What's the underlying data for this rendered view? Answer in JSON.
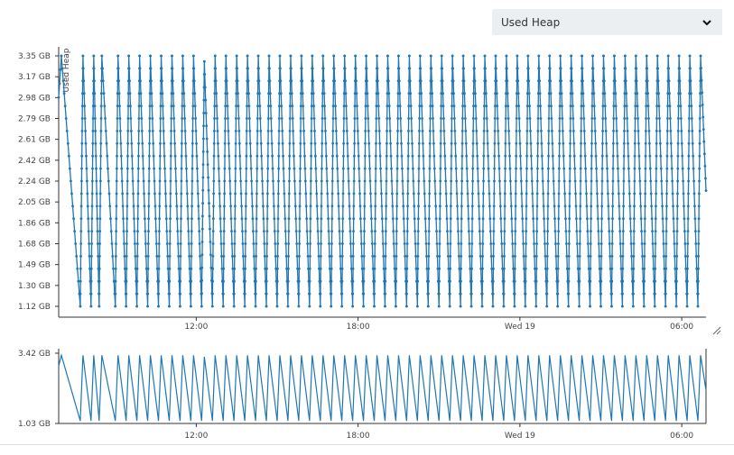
{
  "dropdown": {
    "selected": "Used Heap"
  },
  "icons": {
    "dropdown": "chevron-down-icon",
    "resize": "resize-handle-icon"
  },
  "colors": {
    "series": "#1f77b4",
    "axis": "#333333",
    "dropdown_bg": "#eceff1"
  },
  "chart_data": [
    {
      "type": "line",
      "title": "",
      "ylabel": "Used Heap",
      "xlabel": "",
      "markers": true,
      "y_ticks": [
        "1.12 GB",
        "1.30 GB",
        "1.49 GB",
        "1.68 GB",
        "1.86 GB",
        "2.05 GB",
        "2.24 GB",
        "2.42 GB",
        "2.61 GB",
        "2.79 GB",
        "2.98 GB",
        "3.17 GB",
        "3.35 GB"
      ],
      "x_ticks": [
        "12:00",
        "18:00",
        "Wed 19",
        "06:00"
      ],
      "ylim_gb": [
        1.03,
        3.42
      ],
      "x_range_hours_from_noon": [
        -5.1,
        18.9
      ],
      "series": [
        {
          "values_description": "sawtooth pattern of used heap rising from about 1.1 GB to about 3.4 GB then dropping",
          "x": [
            -5.1,
            -5.0,
            -4.3,
            -4.2,
            -3.9,
            -3.8,
            -3.6,
            -3.5,
            -3.0,
            -2.9,
            -2.6,
            -2.5,
            -2.2,
            -2.1,
            -1.8,
            -1.7,
            -1.4,
            -1.3,
            -1.0,
            -0.9,
            -0.6,
            -0.5,
            -0.2,
            -0.1,
            0.2,
            0.3,
            0.6,
            0.7,
            1.0,
            1.1,
            1.4,
            1.5,
            1.8,
            1.9,
            2.2,
            2.3,
            2.6,
            2.7,
            3.0,
            3.1,
            3.4,
            3.5,
            3.8,
            3.9,
            4.2,
            4.3,
            4.6,
            4.7,
            5.0,
            5.1,
            5.4,
            5.5,
            5.8,
            5.9,
            6.2,
            6.3,
            6.6,
            6.7,
            7.0,
            7.1,
            7.4,
            7.5,
            7.8,
            7.9,
            8.2,
            8.3,
            8.6,
            8.7,
            9.0,
            9.1,
            9.4,
            9.5,
            9.8,
            9.9,
            10.2,
            10.3,
            10.6,
            10.7,
            11.0,
            11.1,
            11.4,
            11.5,
            11.8,
            11.9,
            12.2,
            12.3,
            12.6,
            12.7,
            13.0,
            13.1,
            13.4,
            13.5,
            13.8,
            13.9,
            14.2,
            14.3,
            14.6,
            14.7,
            15.0,
            15.1,
            15.4,
            15.5,
            15.8,
            15.9,
            16.2,
            16.3,
            16.6,
            16.7,
            17.0,
            17.1,
            17.4,
            17.5,
            17.8,
            17.9,
            18.2,
            18.3,
            18.6,
            18.7,
            18.9
          ],
          "y": [
            2.98,
            3.35,
            1.12,
            3.35,
            1.12,
            3.35,
            1.12,
            3.35,
            1.12,
            3.35,
            1.12,
            3.35,
            1.12,
            3.35,
            1.12,
            3.35,
            1.12,
            3.35,
            1.12,
            3.35,
            1.12,
            3.35,
            1.12,
            3.35,
            1.12,
            3.3,
            1.12,
            3.35,
            1.12,
            3.35,
            1.12,
            3.35,
            1.12,
            3.35,
            1.12,
            3.35,
            1.12,
            3.35,
            1.12,
            3.35,
            1.12,
            3.35,
            1.12,
            3.35,
            1.12,
            3.35,
            1.12,
            3.35,
            1.12,
            3.35,
            1.12,
            3.35,
            1.12,
            3.35,
            1.12,
            3.35,
            1.12,
            3.35,
            1.12,
            3.35,
            1.12,
            3.35,
            1.12,
            3.35,
            1.12,
            3.35,
            1.12,
            3.35,
            1.12,
            3.35,
            1.12,
            3.35,
            1.12,
            3.35,
            1.12,
            3.35,
            1.12,
            3.35,
            1.12,
            3.35,
            1.12,
            3.35,
            1.12,
            3.35,
            1.12,
            3.35,
            1.12,
            3.35,
            1.12,
            3.35,
            1.12,
            3.35,
            1.12,
            3.35,
            1.12,
            3.35,
            1.12,
            3.35,
            1.12,
            3.35,
            1.12,
            3.35,
            1.12,
            3.35,
            1.12,
            3.35,
            1.12,
            3.35,
            1.12,
            3.35,
            1.12,
            3.35,
            1.12,
            3.35,
            1.12,
            3.35,
            1.12,
            3.35,
            2.15
          ]
        }
      ]
    },
    {
      "type": "line",
      "title": "",
      "role": "overview",
      "ylabel": "",
      "y_ticks": [
        "1.03 GB",
        "3.42 GB"
      ],
      "x_ticks": [
        "12:00",
        "18:00",
        "Wed 19",
        "06:00"
      ],
      "ylim_gb": [
        1.03,
        3.42
      ]
    }
  ]
}
